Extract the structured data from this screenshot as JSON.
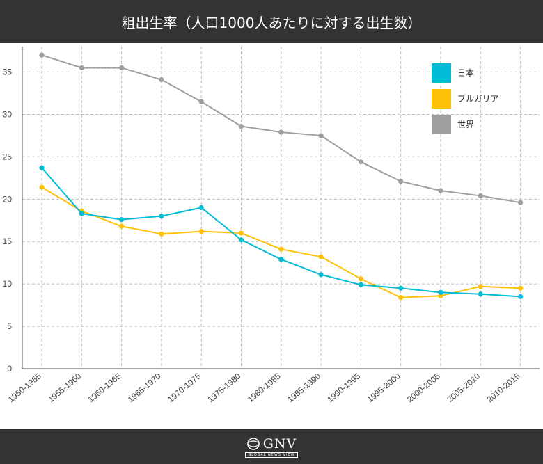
{
  "header": {
    "title": "粗出生率（人口1000人あたりに対する出生数）"
  },
  "footer": {
    "logo_text": "GNV",
    "logo_tagline": "GLOBAL NEWS VIEW"
  },
  "chart_data": {
    "type": "line",
    "title": "粗出生率（人口1000人あたりに対する出生数）",
    "xlabel": "",
    "ylabel": "",
    "ylim": [
      0,
      38
    ],
    "yticks": [
      0,
      5,
      10,
      15,
      20,
      25,
      30,
      35
    ],
    "grid": true,
    "legend": "top-right",
    "categories": [
      "1950-1955",
      "1955-1960",
      "1960-1965",
      "1965-1970",
      "1970-1975",
      "1975-1980",
      "1980-1985",
      "1985-1990",
      "1990-1995",
      "1995-2000",
      "2000-2005",
      "2005-2010",
      "2010-2015"
    ],
    "series": [
      {
        "name": "日本",
        "color": "#00bcd4",
        "values": [
          23.7,
          18.3,
          17.6,
          18.0,
          19.0,
          15.2,
          12.9,
          11.1,
          9.9,
          9.5,
          9.0,
          8.8,
          8.5
        ]
      },
      {
        "name": "ブルガリア",
        "color": "#ffc107",
        "values": [
          21.4,
          18.6,
          16.8,
          15.9,
          16.2,
          16.0,
          14.1,
          13.2,
          10.6,
          8.4,
          8.6,
          9.7,
          9.5
        ]
      },
      {
        "name": "世界",
        "color": "#9e9e9e",
        "values": [
          37.0,
          35.5,
          35.5,
          34.1,
          31.5,
          28.6,
          27.9,
          27.5,
          24.4,
          22.1,
          21.0,
          20.4,
          19.6
        ]
      }
    ]
  }
}
